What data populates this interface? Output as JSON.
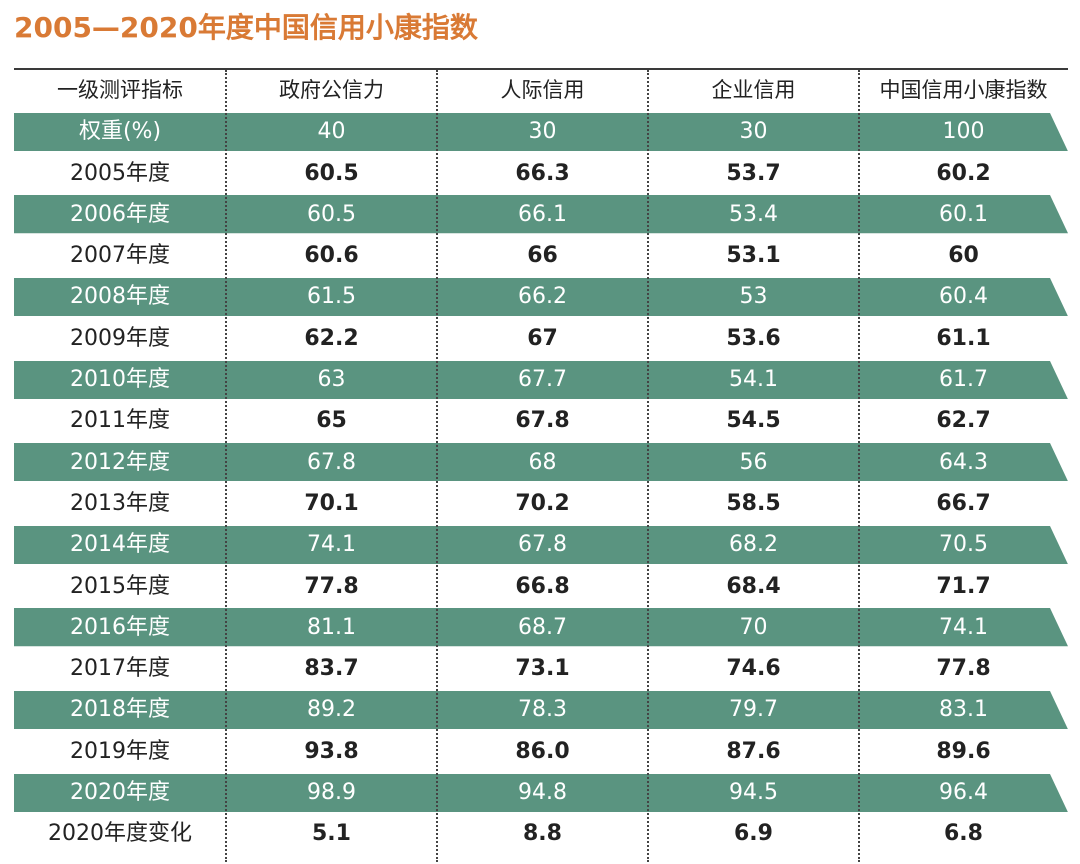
{
  "title": "2005—2020年度中国信用小康指数",
  "colors": {
    "title": "#d97a35",
    "band": "#5a9480",
    "text": "#222222"
  },
  "chart_data": {
    "type": "table",
    "columns": [
      "一级测评指标",
      "政府公信力",
      "人际信用",
      "企业信用",
      "中国信用小康指数"
    ],
    "rows": [
      [
        "权重(%)",
        "40",
        "30",
        "30",
        "100"
      ],
      [
        "2005年度",
        "60.5",
        "66.3",
        "53.7",
        "60.2"
      ],
      [
        "2006年度",
        "60.5",
        "66.1",
        "53.4",
        "60.1"
      ],
      [
        "2007年度",
        "60.6",
        "66",
        "53.1",
        "60"
      ],
      [
        "2008年度",
        "61.5",
        "66.2",
        "53",
        "60.4"
      ],
      [
        "2009年度",
        "62.2",
        "67",
        "53.6",
        "61.1"
      ],
      [
        "2010年度",
        "63",
        "67.7",
        "54.1",
        "61.7"
      ],
      [
        "2011年度",
        "65",
        "67.8",
        "54.5",
        "62.7"
      ],
      [
        "2012年度",
        "67.8",
        "68",
        "56",
        "64.3"
      ],
      [
        "2013年度",
        "70.1",
        "70.2",
        "58.5",
        "66.7"
      ],
      [
        "2014年度",
        "74.1",
        "67.8",
        "68.2",
        "70.5"
      ],
      [
        "2015年度",
        "77.8",
        "66.8",
        "68.4",
        "71.7"
      ],
      [
        "2016年度",
        "81.1",
        "68.7",
        "70",
        "74.1"
      ],
      [
        "2017年度",
        "83.7",
        "73.1",
        "74.6",
        "77.8"
      ],
      [
        "2018年度",
        "89.2",
        "78.3",
        "79.7",
        "83.1"
      ],
      [
        "2019年度",
        "93.8",
        "86.0",
        "87.6",
        "89.6"
      ],
      [
        "2020年度",
        "98.9",
        "94.8",
        "94.5",
        "96.4"
      ],
      [
        "2020年度变化",
        "5.1",
        "8.8",
        "6.9",
        "6.8"
      ]
    ],
    "banded_rows": [
      0,
      2,
      4,
      6,
      8,
      10,
      12,
      14,
      16
    ]
  }
}
